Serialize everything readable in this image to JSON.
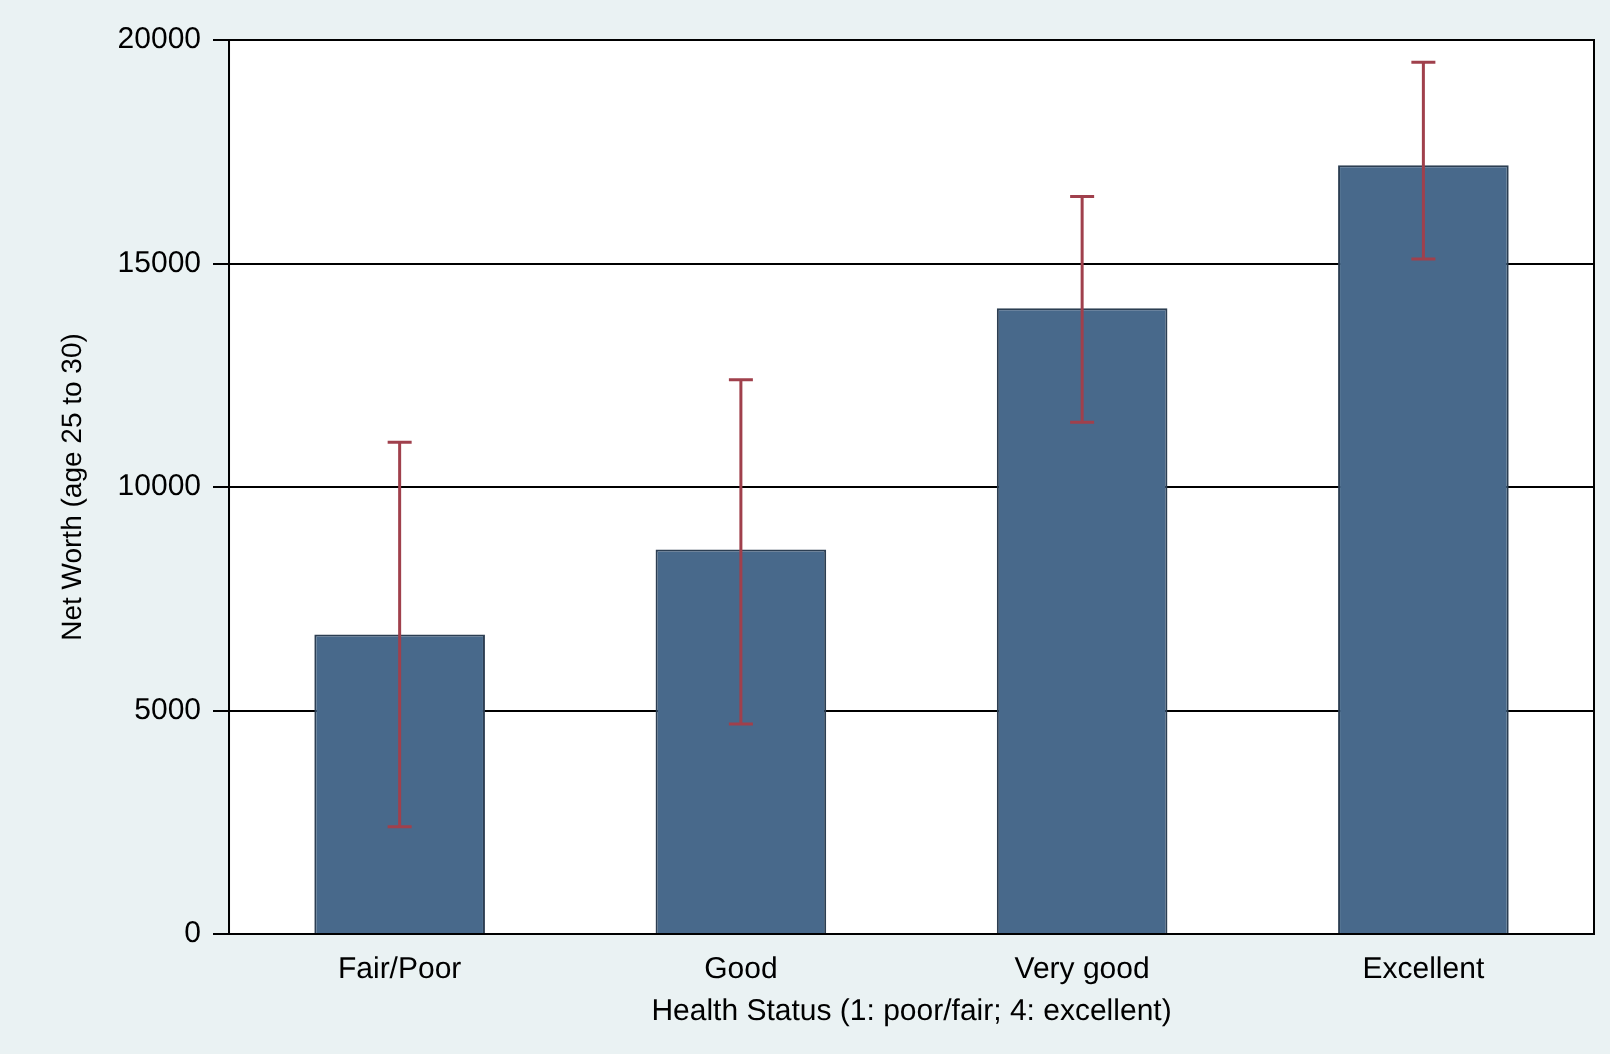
{
  "chart_data": {
    "type": "bar",
    "xlabel": "Health Status (1: poor/fair; 4: excellent)",
    "ylabel": "Net Worth (age 25 to 30)",
    "categories": [
      "Fair/Poor",
      "Good",
      "Very good",
      "Excellent"
    ],
    "values": [
      6700,
      8600,
      14000,
      17200
    ],
    "errors": [
      [
        2400,
        11000
      ],
      [
        4700,
        12400
      ],
      [
        11450,
        16500
      ],
      [
        15100,
        19500
      ]
    ],
    "color": "#48698b",
    "ylim": [
      0,
      20000
    ],
    "yticks": [
      0,
      5000,
      10000,
      15000,
      20000
    ],
    "grid": "y",
    "legend": false
  }
}
